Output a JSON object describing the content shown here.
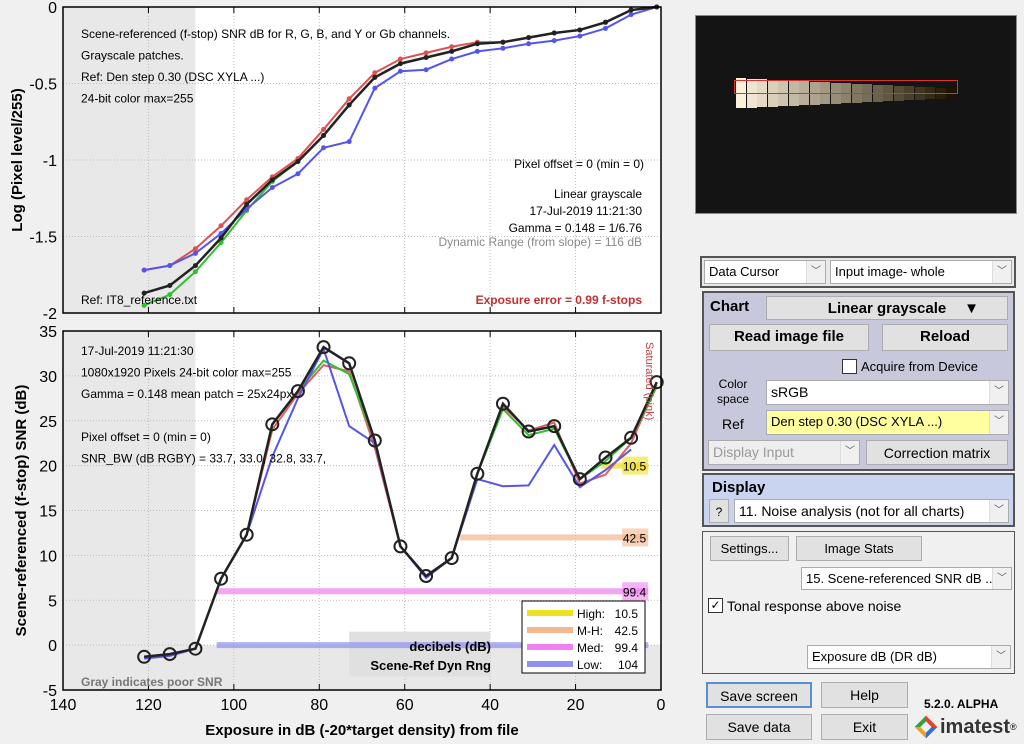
{
  "chart_data": [
    {
      "type": "line",
      "ylabel": "Log (Pixel level/255)",
      "xlim": [
        140,
        0
      ],
      "ylim": [
        -2,
        0
      ],
      "yticks": [
        "0",
        "-0.5",
        "-1",
        "-1.5",
        "-2"
      ],
      "grid": true,
      "x": [
        121,
        115,
        109,
        103,
        97,
        91,
        85,
        79,
        73,
        67,
        61,
        55,
        49,
        43,
        37,
        31,
        25,
        19,
        13,
        7,
        1
      ],
      "series": [
        {
          "key": "R",
          "color": "#e05050",
          "values": [
            -1.72,
            -1.69,
            -1.58,
            -1.43,
            -1.26,
            -1.11,
            -0.99,
            -0.8,
            -0.6,
            -0.43,
            -0.34,
            -0.3,
            -0.26,
            -0.23,
            -0.23,
            -0.2,
            -0.17,
            -0.15,
            -0.1,
            -0.02,
            0
          ]
        },
        {
          "key": "G",
          "color": "#30c030",
          "values": [
            -1.95,
            -1.88,
            -1.73,
            -1.54,
            -1.33,
            -1.14,
            -1.01,
            -0.84,
            -0.64,
            -0.46,
            -0.37,
            -0.33,
            -0.29,
            -0.24,
            -0.23,
            -0.2,
            -0.17,
            -0.15,
            -0.1,
            -0.02,
            0
          ]
        },
        {
          "key": "B",
          "color": "#5555ee",
          "values": [
            -1.72,
            -1.69,
            -1.61,
            -1.48,
            -1.32,
            -1.18,
            -1.09,
            -0.92,
            -0.88,
            -0.53,
            -0.42,
            -0.41,
            -0.34,
            -0.29,
            -0.27,
            -0.24,
            -0.22,
            -0.19,
            -0.14,
            -0.05,
            0
          ]
        },
        {
          "key": "Y",
          "color": "#222222",
          "values": [
            -1.87,
            -1.82,
            -1.69,
            -1.51,
            -1.29,
            -1.13,
            -1.01,
            -0.84,
            -0.64,
            -0.46,
            -0.37,
            -0.33,
            -0.29,
            -0.24,
            -0.23,
            -0.2,
            -0.17,
            -0.15,
            -0.1,
            -0.02,
            0
          ]
        }
      ],
      "annotations": {
        "header": [
          "Scene-referenced (f-stop) SNR dB for R, G, B, and Y or Gb channels.",
          "Grayscale patches.",
          "Ref: Den step 0.30 (DSC XYLA ...)",
          "24-bit color  max=255"
        ],
        "pixel_offset": "Pixel offset = 0  (min = 0)",
        "right": [
          "Linear grayscale",
          "17-Jul-2019 11:21:30",
          "Gamma = 0.148 = 1/6.76"
        ],
        "dynamic_range": "Dynamic Range (from slope) = 116 dB",
        "ref_file": "Ref: IT8_reference.txt",
        "exposure_error": "Exposure error = 0.99 f-stops"
      }
    },
    {
      "type": "line",
      "ylabel": "Scene-referenced (f-stop) SNR (dB)",
      "xlabel": "Exposure in dB (-20*target density)   from file",
      "xlim": [
        140,
        0
      ],
      "ylim": [
        -5,
        35
      ],
      "xticks": [
        "140",
        "120",
        "100",
        "80",
        "60",
        "40",
        "20",
        "0"
      ],
      "yticks": [
        "35",
        "30",
        "25",
        "20",
        "15",
        "10",
        "5",
        "0",
        "-5"
      ],
      "grid": true,
      "x": [
        121,
        115,
        109,
        103,
        97,
        91,
        85,
        79,
        73,
        67,
        61,
        55,
        49,
        43,
        37,
        31,
        25,
        19,
        13,
        7,
        1
      ],
      "series": [
        {
          "key": "R",
          "color": "#e06060",
          "values": [
            -1.3,
            -1.0,
            -0.4,
            7.4,
            12.3,
            24.0,
            28.0,
            31.2,
            30.5,
            22.0,
            11.0,
            7.7,
            9.7,
            19.1,
            26.6,
            23.9,
            24.8,
            18.0,
            19.0,
            22.5,
            29.0
          ]
        },
        {
          "key": "G",
          "color": "#30c030",
          "values": [
            -1.3,
            -1.0,
            -0.4,
            7.4,
            12.3,
            24.6,
            28.3,
            31.7,
            30.2,
            22.8,
            11.0,
            7.7,
            9.7,
            19.1,
            26.3,
            23.4,
            24.1,
            18.5,
            20.5,
            23.1,
            28.8
          ]
        },
        {
          "key": "B",
          "color": "#5555ee",
          "values": [
            -1.5,
            -1.2,
            -0.4,
            7.4,
            12.3,
            21.0,
            27.5,
            33.0,
            24.4,
            22.5,
            11.0,
            7.5,
            9.7,
            18.5,
            17.7,
            17.8,
            22.3,
            17.6,
            19.5,
            21.8,
            null
          ]
        },
        {
          "key": "Y",
          "color": "#222222",
          "values": [
            -1.3,
            -1.0,
            -0.4,
            7.4,
            12.3,
            24.6,
            28.3,
            33.2,
            31.4,
            22.8,
            11.0,
            7.7,
            9.7,
            19.1,
            26.9,
            23.8,
            24.4,
            18.5,
            20.9,
            23.1,
            29.3
          ]
        }
      ],
      "bands": [
        {
          "name": "High",
          "value": "10.5",
          "y": 20,
          "from": 14,
          "color": "#f0e020"
        },
        {
          "name": "M-H",
          "value": "42.5",
          "y": 12,
          "from": 47,
          "color": "#f4b890"
        },
        {
          "name": "Med",
          "value": "99.4",
          "y": 6,
          "from": 104,
          "color": "#f080f0"
        },
        {
          "name": "Low",
          "value": "104",
          "y": 0,
          "from": 104,
          "color": "#9090f0"
        }
      ],
      "legend": {
        "position": "bottom-right",
        "items": [
          {
            "label": "High:",
            "value": "10.5"
          },
          {
            "label": "M-H:",
            "value": "42.5"
          },
          {
            "label": "Med:",
            "value": "99.4"
          },
          {
            "label": "Low:",
            "value": "104"
          }
        ]
      },
      "annotations": {
        "info": [
          "17-Jul-2019 11:21:30",
          "1080x1920 Pixels   24-bit color  max=255",
          "Gamma = 0.148   mean patch = 25x24px",
          "",
          "Pixel offset = 0  (min = 0)",
          "SNR_BW (dB RGBY) = 33.7, 33.0, 32.8, 33.7,"
        ],
        "saturated": "Saturated (pink)",
        "dr_title": "decibels (dB)",
        "dr_sub": "Scene-Ref Dyn Rng",
        "gray_note": "Gray indicates poor SNR"
      }
    }
  ],
  "panel": {
    "cursor_mode": "Data Cursor",
    "image_view": "Input image- whole",
    "chart_label": "Chart",
    "chart_type": "Linear grayscale",
    "read_btn": "Read image file",
    "reload_btn": "Reload",
    "acquire_label": "Acquire from Device",
    "acquire_checked": false,
    "color_space_label": "Color space",
    "color_space": "sRGB",
    "ref_label": "Ref",
    "ref_value": "Den step 0.30 (DSC XYLA ...)",
    "display_input": "Display Input",
    "correction_btn": "Correction matrix",
    "display_label": "Display",
    "help_q": "?",
    "display_value": "11. Noise analysis (not for all charts)",
    "settings_btn": "Settings...",
    "stats_btn": "Image Stats",
    "plot_select": "15. Scene-referenced SNR dB ...",
    "tonal_label": "Tonal response above noise",
    "tonal_checked": true,
    "xaxis_select": "Exposure dB (DR dB)",
    "save_screen": "Save screen",
    "help_btn": "Help",
    "save_data": "Save data",
    "exit_btn": "Exit",
    "version": "5.2.0. ALPHA",
    "brand": "imatest",
    "reg": "®"
  }
}
